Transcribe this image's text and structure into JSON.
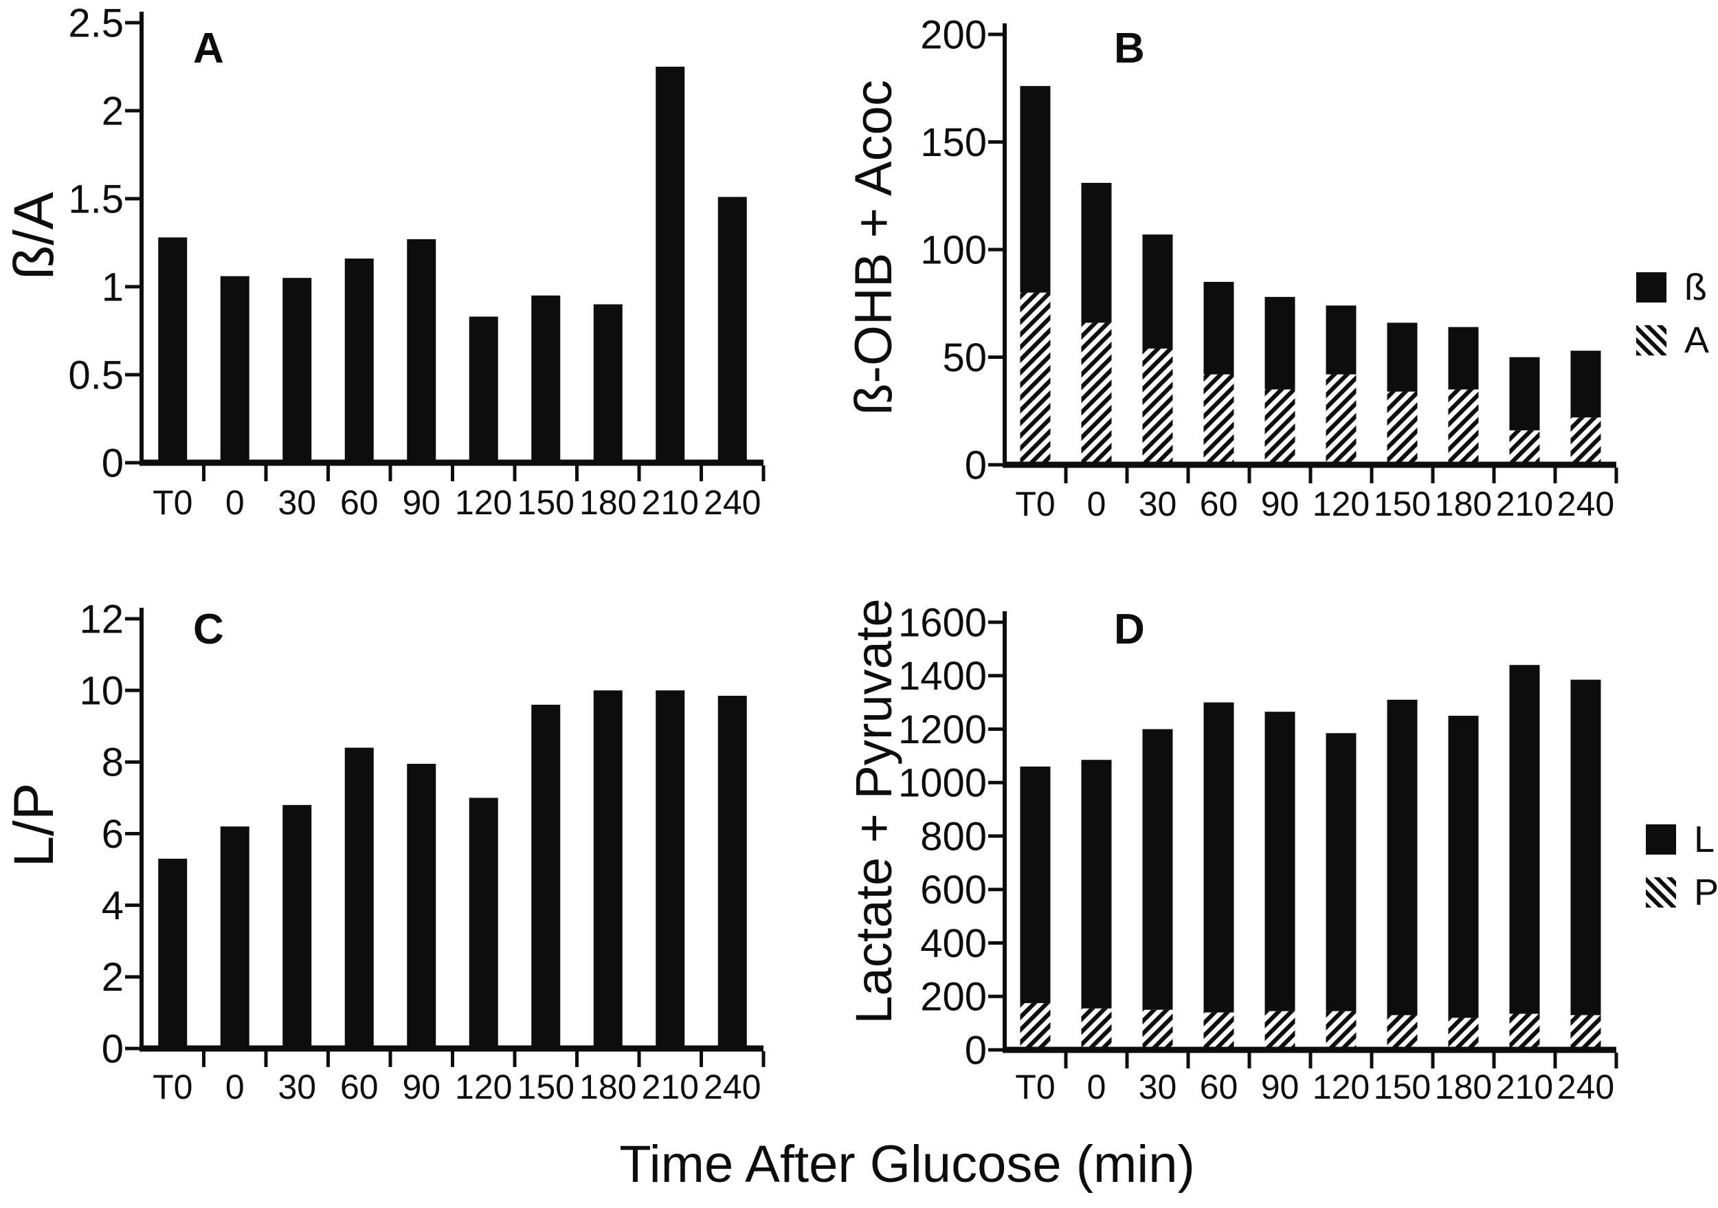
{
  "figure": {
    "xlabel": "Time After Glucose (min)",
    "background": "#ffffff",
    "bar_color": "#0d0d0d",
    "x_categories": [
      "T0",
      "0",
      "30",
      "60",
      "90",
      "120",
      "150",
      "180",
      "210",
      "240"
    ]
  },
  "chart_data": [
    {
      "panel": "A",
      "type": "bar",
      "ylabel": "ß/A",
      "xlabel": "Time After Glucose (min)",
      "categories": [
        "T0",
        "0",
        "30",
        "60",
        "90",
        "120",
        "150",
        "180",
        "210",
        "240"
      ],
      "ylim": [
        0,
        2.5
      ],
      "ytick_values": [
        0,
        0.5,
        1,
        1.5,
        2,
        2.5
      ],
      "ytick_labels": [
        "0",
        "0.5",
        "1",
        "1.5",
        "2",
        "2.5"
      ],
      "grid": false,
      "series": [
        {
          "name": "ß/A",
          "pattern": "solid",
          "values": [
            1.28,
            1.06,
            1.05,
            1.16,
            1.27,
            0.83,
            0.95,
            0.9,
            2.25,
            1.51
          ]
        }
      ]
    },
    {
      "panel": "B",
      "type": "stacked-bar",
      "ylabel": "ß-OHB + Acoc",
      "xlabel": "Time After Glucose (min)",
      "categories": [
        "T0",
        "0",
        "30",
        "60",
        "90",
        "120",
        "150",
        "180",
        "210",
        "240"
      ],
      "ylim": [
        0,
        200
      ],
      "ytick_values": [
        0,
        50,
        100,
        150,
        200
      ],
      "ytick_labels": [
        "0",
        "50",
        "100",
        "150",
        "200"
      ],
      "grid": false,
      "series": [
        {
          "name": "A",
          "pattern": "hatch",
          "values": [
            80,
            66,
            54,
            42,
            35,
            42,
            34,
            35,
            16,
            22
          ]
        },
        {
          "name": "ß",
          "pattern": "solid",
          "values": [
            96,
            65,
            53,
            43,
            43,
            32,
            32,
            29,
            34,
            31
          ]
        }
      ],
      "totals": [
        176,
        131,
        107,
        85,
        78,
        74,
        66,
        64,
        50,
        53
      ],
      "legend": [
        {
          "label": "ß",
          "pattern": "solid"
        },
        {
          "label": "A",
          "pattern": "hatch"
        }
      ],
      "legend_position": "right"
    },
    {
      "panel": "C",
      "type": "bar",
      "ylabel": "L/P",
      "xlabel": "Time After Glucose (min)",
      "categories": [
        "T0",
        "0",
        "30",
        "60",
        "90",
        "120",
        "150",
        "180",
        "210",
        "240"
      ],
      "ylim": [
        0,
        12
      ],
      "ytick_values": [
        0,
        2,
        4,
        6,
        8,
        10,
        12
      ],
      "ytick_labels": [
        "0",
        "2",
        "4",
        "6",
        "8",
        "10",
        "12"
      ],
      "grid": false,
      "series": [
        {
          "name": "L/P",
          "pattern": "solid",
          "values": [
            5.3,
            6.2,
            6.8,
            8.4,
            7.95,
            7.0,
            9.6,
            10.0,
            10.0,
            9.85
          ]
        }
      ]
    },
    {
      "panel": "D",
      "type": "stacked-bar",
      "ylabel": "Lactate + Pyruvate",
      "xlabel": "Time After Glucose (min)",
      "categories": [
        "T0",
        "0",
        "30",
        "60",
        "90",
        "120",
        "150",
        "180",
        "210",
        "240"
      ],
      "ylim": [
        0,
        1600
      ],
      "ytick_values": [
        0,
        200,
        400,
        600,
        800,
        1000,
        1200,
        1400,
        1600
      ],
      "ytick_labels": [
        "0",
        "200",
        "400",
        "600",
        "800",
        "1000",
        "1200",
        "1400",
        "1600"
      ],
      "grid": false,
      "series": [
        {
          "name": "P",
          "pattern": "hatch",
          "values": [
            175,
            155,
            150,
            140,
            145,
            145,
            130,
            120,
            135,
            130
          ]
        },
        {
          "name": "L",
          "pattern": "solid",
          "values": [
            885,
            930,
            1050,
            1160,
            1120,
            1040,
            1180,
            1130,
            1305,
            1255
          ]
        }
      ],
      "totals": [
        1060,
        1085,
        1200,
        1300,
        1265,
        1185,
        1310,
        1250,
        1440,
        1385
      ],
      "legend": [
        {
          "label": "L",
          "pattern": "solid"
        },
        {
          "label": "P",
          "pattern": "hatch"
        }
      ],
      "legend_position": "right"
    }
  ]
}
